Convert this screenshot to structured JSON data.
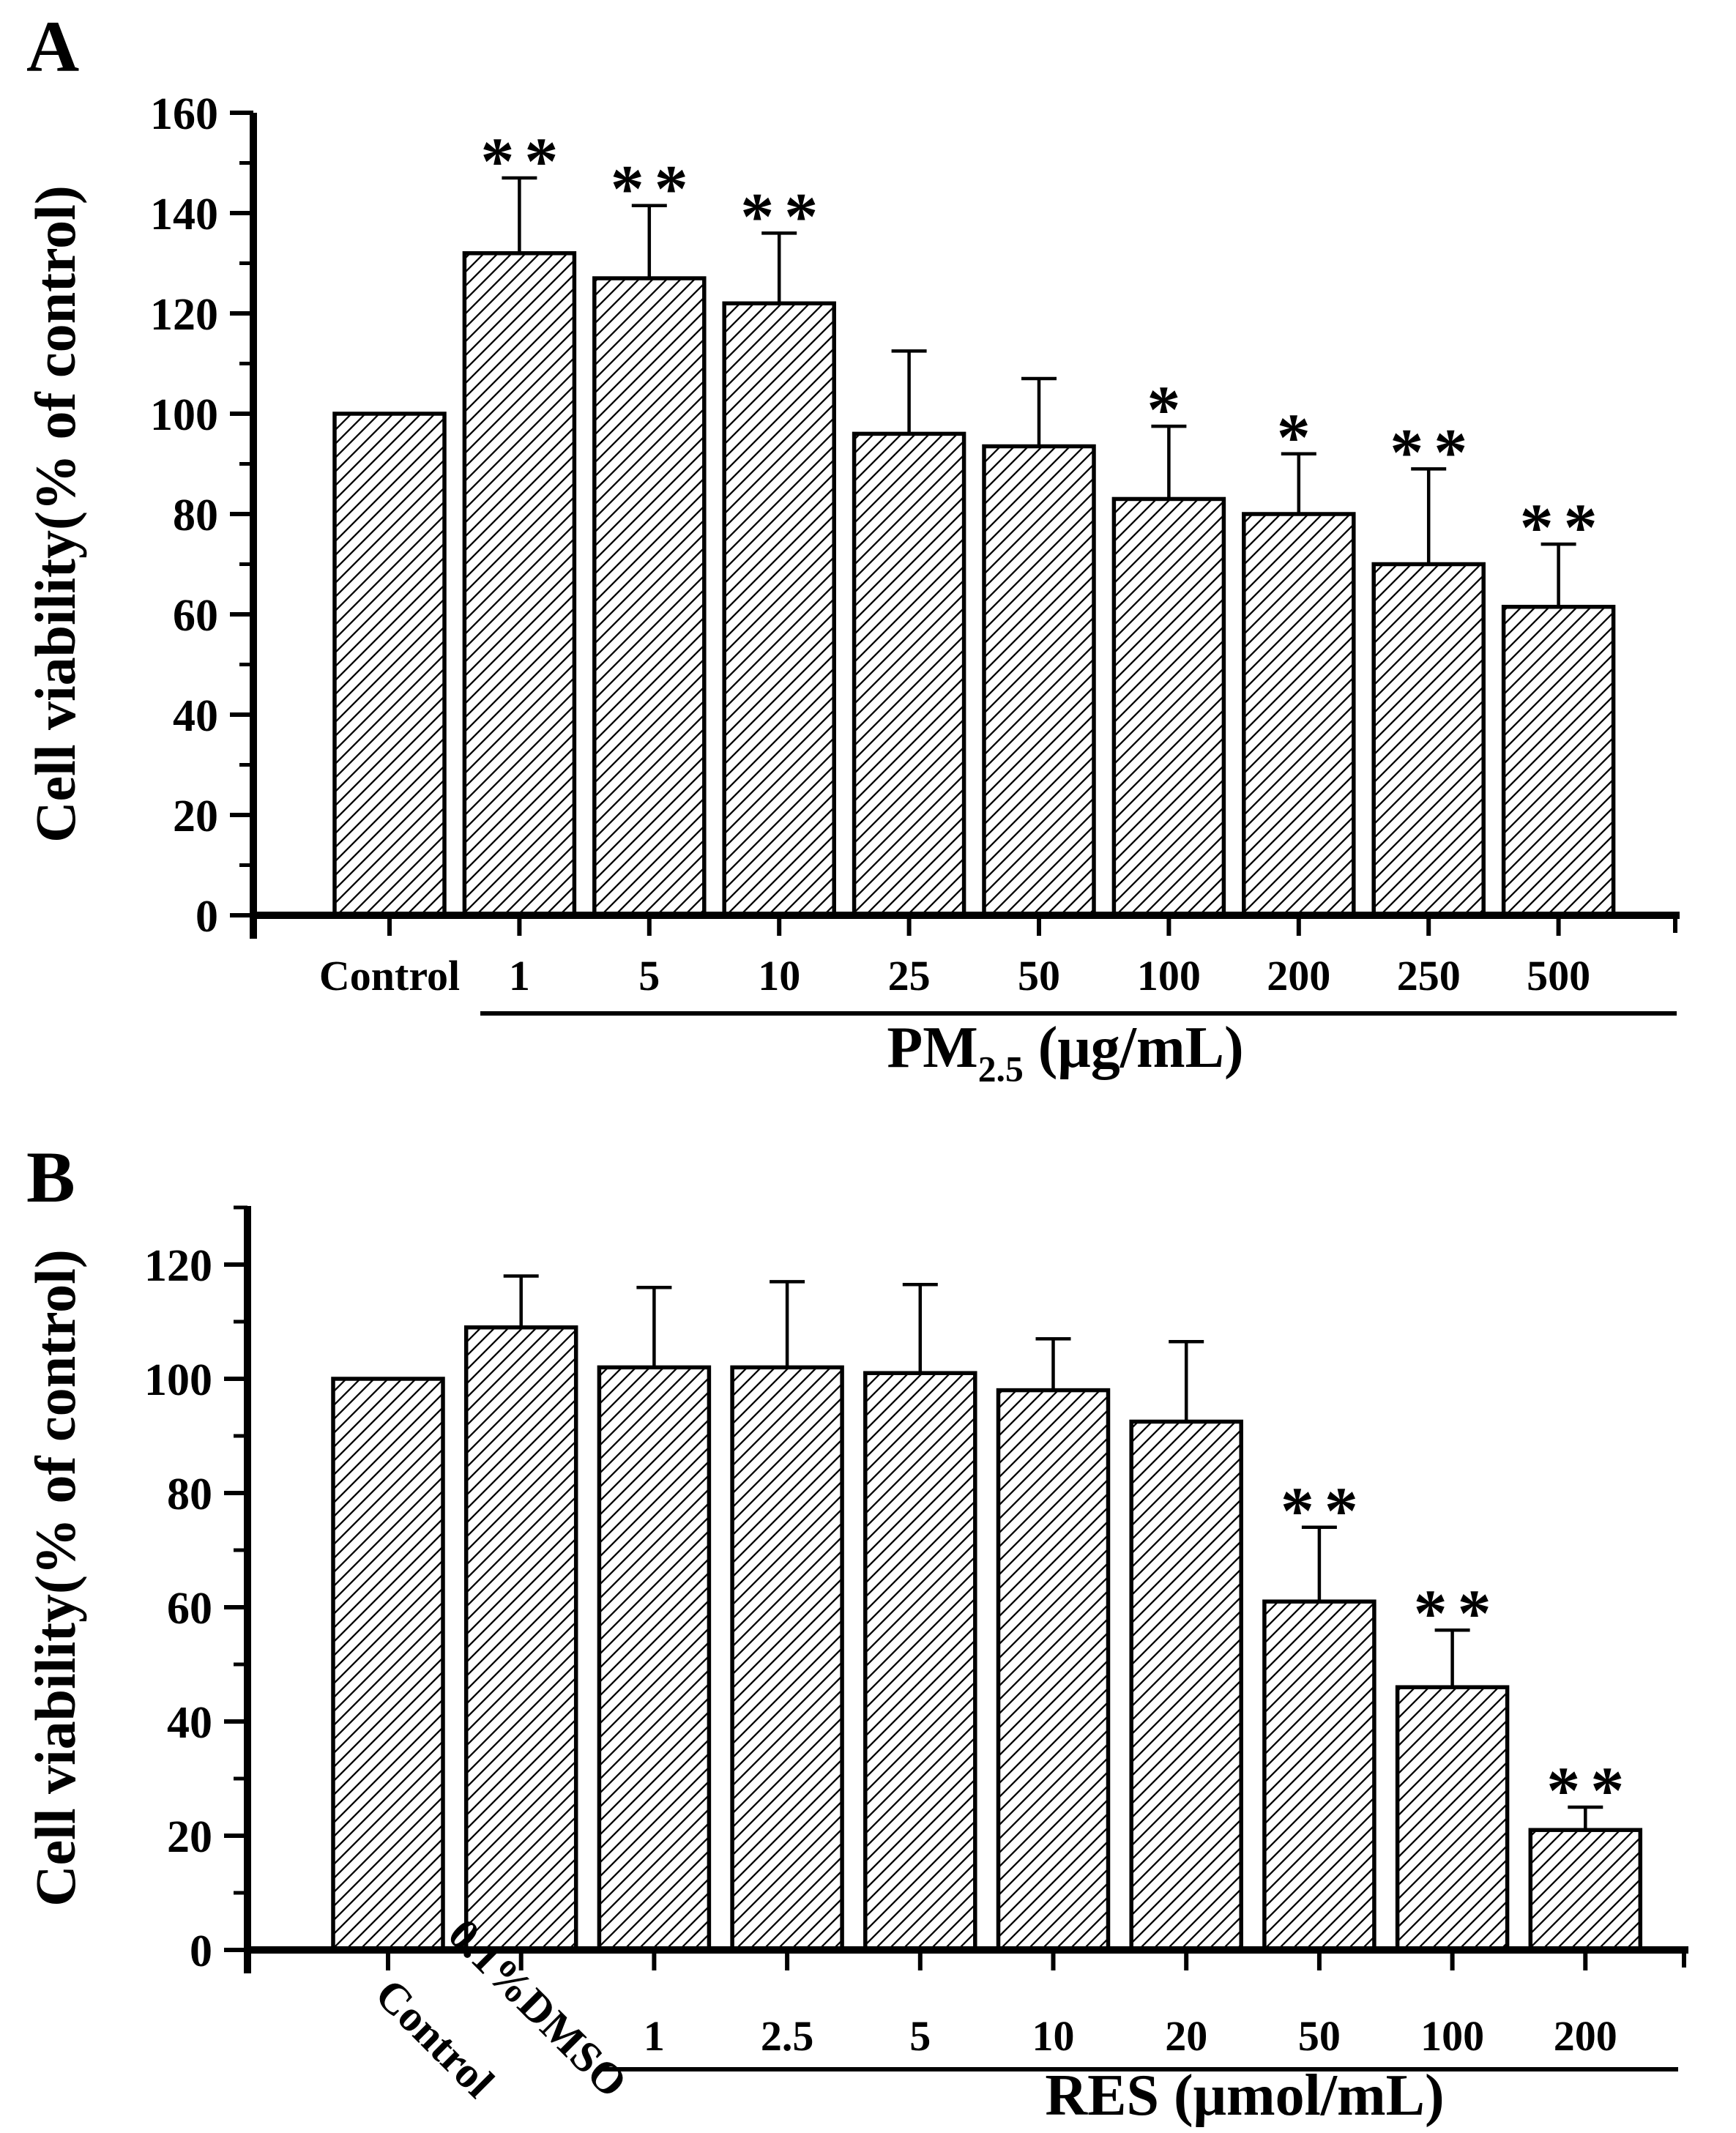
{
  "figure_bg": "#ffffff",
  "line_color": "#000000",
  "chart_data": [
    {
      "id": "A",
      "type": "bar",
      "panel_label": "A",
      "ylabel": "Cell viability(% of control)",
      "xlabel": "PM2.5 (μg/mL)",
      "xlabel_parts": {
        "main": "PM",
        "sub": "2.5",
        "rest": " (μg/mL)"
      },
      "categories": [
        "Control",
        "1",
        "5",
        "10",
        "25",
        "50",
        "100",
        "200",
        "250",
        "500"
      ],
      "values": [
        100,
        132,
        127,
        122,
        96,
        93.5,
        83,
        80,
        70,
        61.5
      ],
      "errors_plus": [
        0,
        15,
        14.5,
        14,
        16.5,
        13.5,
        14.5,
        12,
        19,
        12.5
      ],
      "significance": [
        "",
        "**",
        "**",
        "**",
        "",
        "",
        "*",
        "*",
        "**",
        "**"
      ],
      "ylim": [
        0,
        160
      ],
      "yticks": [
        "0",
        "20",
        "40",
        "60",
        "80",
        "100",
        "120",
        "140",
        "160"
      ],
      "ytick_minor_step": 10,
      "grid": false,
      "legend": null,
      "bar_style": "diagonal-hatch",
      "underline_categories_from": "1",
      "rotated_category_labels": []
    },
    {
      "id": "B",
      "type": "bar",
      "panel_label": "B",
      "ylabel": "Cell viability(% of control)",
      "xlabel": "RES (μmol/mL)",
      "xlabel_parts": {
        "main": "RES (μmol/mL)",
        "sub": "",
        "rest": ""
      },
      "categories": [
        "Control",
        "0.1%DMSO",
        "1",
        "2.5",
        "5",
        "10",
        "20",
        "50",
        "100",
        "200"
      ],
      "values": [
        100,
        109,
        102,
        102,
        101,
        98,
        92.5,
        61,
        46,
        21
      ],
      "errors_plus": [
        0,
        9,
        14,
        15,
        15.5,
        9,
        14,
        13,
        10,
        4
      ],
      "significance": [
        "",
        "",
        "",
        "",
        "",
        "",
        "",
        "**",
        "**",
        "**"
      ],
      "ylim": [
        0,
        130
      ],
      "yticks": [
        "0",
        "20",
        "40",
        "60",
        "80",
        "100",
        "120"
      ],
      "ytick_minor_step": 10,
      "grid": false,
      "legend": null,
      "bar_style": "diagonal-hatch",
      "underline_categories_from": "1",
      "rotated_category_labels": [
        "Control",
        "0.1%DMSO"
      ]
    }
  ]
}
